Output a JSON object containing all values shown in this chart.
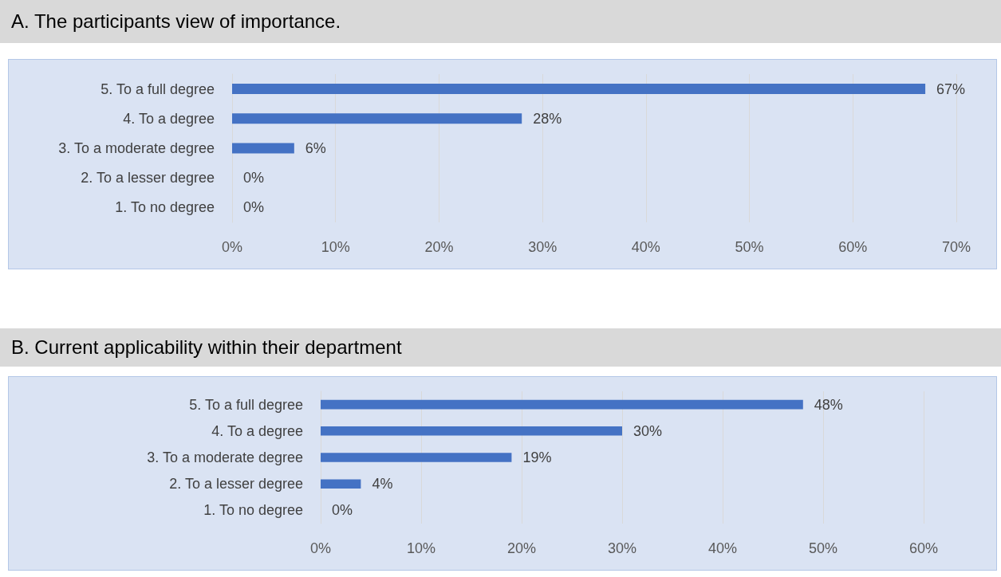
{
  "chart_data": [
    {
      "type": "bar",
      "orientation": "horizontal",
      "title": "A. The participants view of importance.",
      "categories": [
        "5. To a full degree",
        "4. To a degree",
        "3. To a moderate degree",
        "2. To a lesser degree",
        "1. To no degree"
      ],
      "values": [
        67,
        28,
        6,
        0,
        0
      ],
      "value_labels": [
        "67%",
        "28%",
        "6%",
        "0%",
        "0%"
      ],
      "color": "#4472c4",
      "xlim": [
        0,
        70
      ],
      "xticks": [
        {
          "value": 0,
          "label": "0%"
        },
        {
          "value": 10,
          "label": "10%"
        },
        {
          "value": 20,
          "label": "20%"
        },
        {
          "value": 30,
          "label": "30%"
        },
        {
          "value": 40,
          "label": "40%"
        },
        {
          "value": 50,
          "label": "50%"
        },
        {
          "value": 60,
          "label": "60%"
        },
        {
          "value": 70,
          "label": "70%"
        }
      ],
      "grid": "x"
    },
    {
      "type": "bar",
      "orientation": "horizontal",
      "title": "B. Current applicability within their department",
      "categories": [
        "5. To a full degree",
        "4. To a degree",
        "3. To a moderate degree",
        "2. To a lesser degree",
        "1. To no degree"
      ],
      "values": [
        48,
        30,
        19,
        4,
        0
      ],
      "value_labels": [
        "48%",
        "30%",
        "19%",
        "4%",
        "0%"
      ],
      "color": "#4472c4",
      "xlim": [
        0,
        60
      ],
      "xticks": [
        {
          "value": 0,
          "label": "0%"
        },
        {
          "value": 10,
          "label": "10%"
        },
        {
          "value": 20,
          "label": "20%"
        },
        {
          "value": 30,
          "label": "30%"
        },
        {
          "value": 40,
          "label": "40%"
        },
        {
          "value": 50,
          "label": "50%"
        },
        {
          "value": 60,
          "label": "60%"
        }
      ],
      "grid": "x"
    }
  ]
}
